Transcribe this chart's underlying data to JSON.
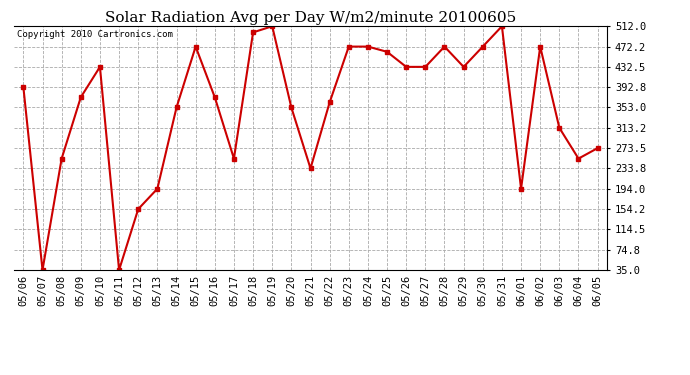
{
  "title": "Solar Radiation Avg per Day W/m2/minute 20100605",
  "copyright": "Copyright 2010 Cartronics.com",
  "yticks": [
    35.0,
    74.8,
    114.5,
    154.2,
    194.0,
    233.8,
    273.5,
    313.2,
    353.0,
    392.8,
    432.5,
    472.2,
    512.0
  ],
  "dates": [
    "05/06",
    "05/07",
    "05/08",
    "05/09",
    "05/10",
    "05/11",
    "05/12",
    "05/13",
    "05/14",
    "05/15",
    "05/16",
    "05/17",
    "05/18",
    "05/19",
    "05/20",
    "05/21",
    "05/22",
    "05/23",
    "05/24",
    "05/25",
    "05/26",
    "05/27",
    "05/28",
    "05/29",
    "05/30",
    "05/31",
    "06/01",
    "06/02",
    "06/03",
    "06/04",
    "06/05"
  ],
  "values": [
    392.8,
    35.0,
    253.0,
    373.0,
    432.5,
    35.0,
    154.2,
    194.0,
    353.0,
    472.2,
    373.0,
    253.0,
    500.0,
    512.0,
    353.0,
    233.8,
    363.0,
    472.2,
    472.2,
    462.0,
    432.5,
    432.5,
    472.2,
    432.5,
    472.2,
    512.0,
    194.0,
    472.2,
    313.2,
    253.0,
    273.5
  ],
  "line_color": "#cc0000",
  "marker": "s",
  "marker_size": 2.5,
  "bg_color": "#ffffff",
  "plot_bg_color": "#ffffff",
  "grid_color": "#aaaaaa",
  "grid_style": "--",
  "title_fontsize": 11,
  "tick_fontsize": 7.5,
  "ylim": [
    35.0,
    512.0
  ]
}
